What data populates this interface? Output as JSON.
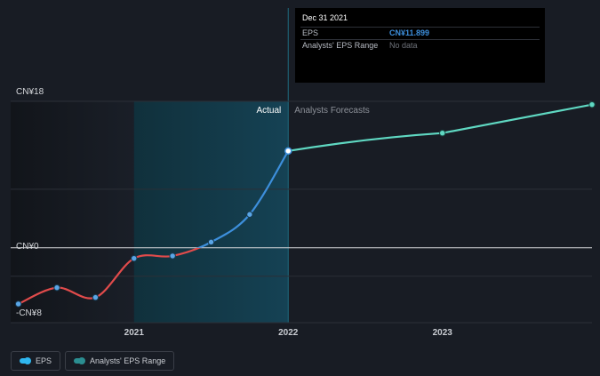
{
  "chart_data": {
    "type": "line",
    "y_axis_labels": [
      "CN¥18",
      "CN¥0",
      "-CN¥8"
    ],
    "x_tick_labels": [
      "2021",
      "2022",
      "2023"
    ],
    "ylim": [
      -8,
      18
    ],
    "xlim": [
      2020.2,
      2023.97
    ],
    "region_labels": {
      "actual": "Actual",
      "forecast": "Analysts Forecasts"
    },
    "series": [
      {
        "name": "EPS",
        "points": [
          {
            "x": 2020.25,
            "y": -6.9
          },
          {
            "x": 2020.5,
            "y": -4.9
          },
          {
            "x": 2020.75,
            "y": -6.1
          },
          {
            "x": 2021.0,
            "y": -1.3
          },
          {
            "x": 2021.25,
            "y": -1.0
          },
          {
            "x": 2021.5,
            "y": 0.7
          },
          {
            "x": 2021.75,
            "y": 4.1
          },
          {
            "x": 2022.0,
            "y": 11.899
          }
        ]
      },
      {
        "name": "Analysts Forecasts",
        "points": [
          {
            "x": 2022.0,
            "y": 11.899
          },
          {
            "x": 2023.0,
            "y": 14.1
          },
          {
            "x": 2023.97,
            "y": 17.6
          }
        ]
      }
    ],
    "grid": true
  },
  "tooltip": {
    "date": "Dec 31 2021",
    "rows": [
      {
        "key": "EPS",
        "value": "CN¥11.899",
        "color": "#3d8fdc"
      },
      {
        "key": "Analysts' EPS Range",
        "value": "No data",
        "color": "#6f737b"
      }
    ]
  },
  "legend": [
    {
      "label": "EPS",
      "color": "#2fb7f0"
    },
    {
      "label": "Analysts' EPS Range",
      "color": "#2b8e91"
    }
  ],
  "colors": {
    "negative": "#e14b4b",
    "positive": "#3d8fdc",
    "forecast": "#5fd8c2",
    "marker_fill": "#5aa6e6"
  }
}
